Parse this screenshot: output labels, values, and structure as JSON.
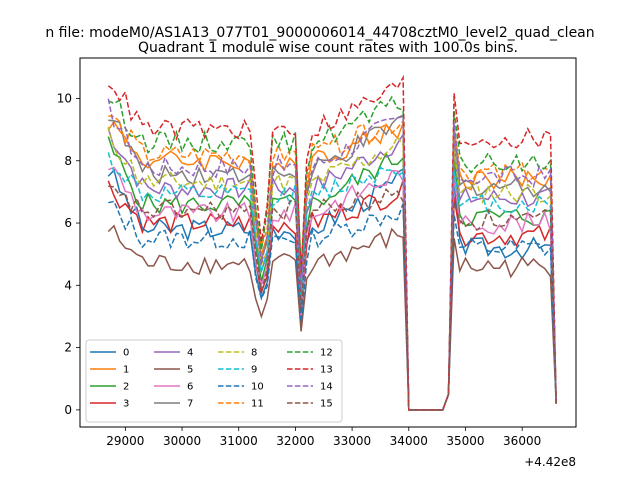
{
  "figure": {
    "suptitle": "n file: modeM0/AS1A13_077T01_9000006014_44708cztM0_level2_quad_clean",
    "offset_label": "+4.42e8"
  },
  "chart_data": {
    "type": "line",
    "title": "Quadrant 1 module wise count rates with 100.0s bins.",
    "xlabel": "",
    "ylabel": "",
    "xlim": [
      28200,
      36950
    ],
    "ylim": [
      -0.55,
      11.3
    ],
    "x_offset": 442000000,
    "xticks": [
      29000,
      30000,
      31000,
      32000,
      33000,
      34000,
      35000,
      36000
    ],
    "xtick_labels": [
      "29000",
      "30000",
      "31000",
      "32000",
      "33000",
      "34000",
      "35000",
      "36000"
    ],
    "yticks": [
      0,
      2,
      4,
      6,
      8,
      10
    ],
    "ytick_labels": [
      "0",
      "2",
      "4",
      "6",
      "8",
      "10"
    ],
    "grid": false,
    "legend_position": "lower-left",
    "bin_size_s": 100,
    "segments": [
      {
        "start": 28700,
        "end": 33900
      },
      {
        "start": 34000,
        "end": 34700
      },
      {
        "start": 34800,
        "end": 36500
      },
      {
        "start": 36600,
        "end": 36600
      }
    ],
    "dips": [
      {
        "x": 31300,
        "factor": 0.78
      },
      {
        "x": 31400,
        "factor": 0.62
      },
      {
        "x": 31500,
        "factor": 0.72
      },
      {
        "x": 32100,
        "factor": 0.5
      },
      {
        "x": 32200,
        "factor": 0.9
      }
    ],
    "series": [
      {
        "name": "0",
        "color": "#1f77b4",
        "style": "solid",
        "level": 5.8,
        "start": 7.7,
        "end": 5.2
      },
      {
        "name": "1",
        "color": "#ff7f0e",
        "style": "solid",
        "level": 8.0,
        "start": 9.3,
        "end": 7.4
      },
      {
        "name": "2",
        "color": "#2ca02c",
        "style": "solid",
        "level": 6.6,
        "start": 8.5,
        "end": 6.2
      },
      {
        "name": "3",
        "color": "#d62728",
        "style": "solid",
        "level": 6.0,
        "start": 7.2,
        "end": 5.6
      },
      {
        "name": "4",
        "color": "#9467bd",
        "style": "solid",
        "level": 7.1,
        "start": 9.0,
        "end": 6.8
      },
      {
        "name": "5",
        "color": "#8c564b",
        "style": "solid",
        "level": 4.7,
        "start": 5.8,
        "end": 4.6
      },
      {
        "name": "6",
        "color": "#e377c2",
        "style": "solid",
        "level": 6.3,
        "start": 7.9,
        "end": 6.0
      },
      {
        "name": "7",
        "color": "#7f7f7f",
        "style": "solid",
        "level": 7.6,
        "start": 9.6,
        "end": 7.2
      },
      {
        "name": "8",
        "color": "#bcbd22",
        "style": "dashed",
        "level": 7.3,
        "start": 8.8,
        "end": 7.0
      },
      {
        "name": "9",
        "color": "#17becf",
        "style": "dashed",
        "level": 6.9,
        "start": 8.1,
        "end": 6.6
      },
      {
        "name": "10",
        "color": "#1f77b4",
        "style": "dashed",
        "level": 5.5,
        "start": 6.6,
        "end": 5.2
      },
      {
        "name": "11",
        "color": "#ff7f0e",
        "style": "dashed",
        "level": 8.2,
        "start": 9.5,
        "end": 7.6
      },
      {
        "name": "12",
        "color": "#2ca02c",
        "style": "dashed",
        "level": 8.6,
        "start": 10.1,
        "end": 7.9
      },
      {
        "name": "13",
        "color": "#d62728",
        "style": "dashed",
        "level": 9.0,
        "start": 10.7,
        "end": 8.7
      },
      {
        "name": "14",
        "color": "#9467bd",
        "style": "dashed",
        "level": 7.8,
        "start": 9.7,
        "end": 7.5
      },
      {
        "name": "15",
        "color": "#8c564b",
        "style": "dashed",
        "level": 6.4,
        "start": 7.0,
        "end": 6.1
      }
    ]
  }
}
